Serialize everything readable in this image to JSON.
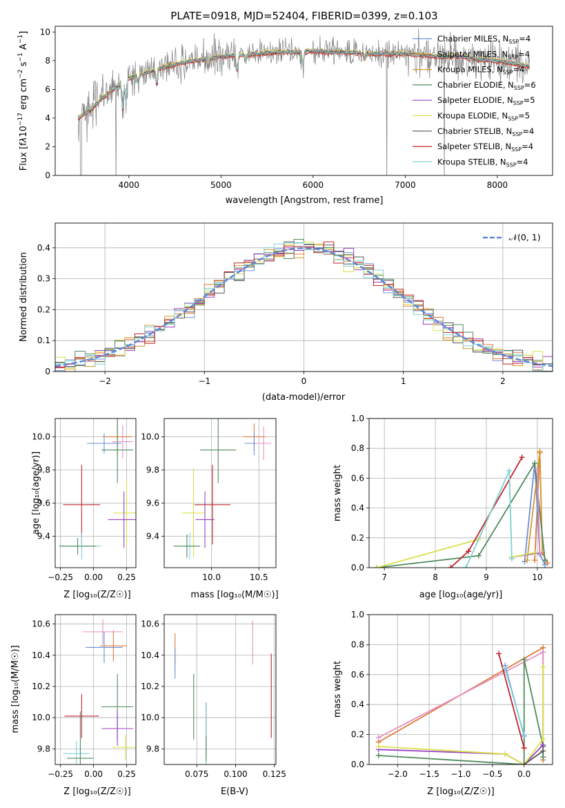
{
  "figure_title": "PLATE=0918, MJD=52404, FIBERID=0399, z=0.103",
  "chart_data": [
    {
      "id": "spectrum",
      "type": "line",
      "title": "PLATE=0918, MJD=52404, FIBERID=0399, z=0.103",
      "xlabel": "wavelength [Angstrom, rest frame]",
      "ylabel": "Flux [fλ10⁻¹⁷ erg cm⁻² s⁻¹ A⁻¹]",
      "xlim": [
        3200,
        8600
      ],
      "ylim": [
        0,
        10.4
      ],
      "xticks": [
        4000,
        5000,
        6000,
        7000,
        8000
      ],
      "yticks": [
        0,
        2,
        4,
        6,
        8,
        10
      ],
      "grid": false,
      "legend_position": "right",
      "continuum": {
        "x": [
          3450,
          3600,
          3700,
          3800,
          3900,
          4000,
          4200,
          4400,
          4600,
          4800,
          5000,
          5200,
          5400,
          5600,
          5800,
          6000,
          6200,
          6400,
          6600,
          6800,
          7000,
          7200,
          7400,
          7600,
          7800,
          8000,
          8200,
          8350
        ],
        "y": [
          4.0,
          4.7,
          5.3,
          5.9,
          6.3,
          6.8,
          7.2,
          7.6,
          7.9,
          8.1,
          8.3,
          8.4,
          8.5,
          8.6,
          8.6,
          8.7,
          8.6,
          8.6,
          8.5,
          8.5,
          8.5,
          8.4,
          8.3,
          8.3,
          8.1,
          8.0,
          7.8,
          7.6
        ]
      },
      "absorption_features": [
        {
          "x": 3934,
          "depth": 2.0
        },
        {
          "x": 3969,
          "depth": 1.6
        },
        {
          "x": 4101,
          "depth": 0.6
        },
        {
          "x": 4304,
          "depth": 1.1
        },
        {
          "x": 4861,
          "depth": 0.5
        },
        {
          "x": 5175,
          "depth": 1.2
        },
        {
          "x": 5270,
          "depth": 0.5
        },
        {
          "x": 5890,
          "depth": 0.9
        },
        {
          "x": 6563,
          "depth": 0.4
        }
      ],
      "series": [
        {
          "name": "Chabrier MILES, N_SSP=4",
          "color": "#6a8fd6",
          "offset": 0.05
        },
        {
          "name": "Salpeter MILES, N_SSP=4",
          "color": "#e07a3b",
          "offset": -0.08
        },
        {
          "name": "Kroupa MILES, N_SSP=4",
          "color": "#d49b2a",
          "offset": 0.02
        },
        {
          "name": "Chabrier ELODIE, N_SSP=6",
          "color": "#4e8a5a",
          "offset": -0.04
        },
        {
          "name": "Salpeter ELODIE, N_SSP=5",
          "color": "#9b3fc2",
          "offset": 0.06
        },
        {
          "name": "Kroupa ELODIE, N_SSP=5",
          "color": "#d9e04a",
          "offset": 0.1
        },
        {
          "name": "Chabrier STELIB, N_SSP=4",
          "color": "#555555",
          "offset": 0.0
        },
        {
          "name": "Salpeter STELIB, N_SSP=4",
          "color": "#c0222a",
          "offset": -0.12
        },
        {
          "name": "Kroupa STELIB, N_SSP=4",
          "color": "#7fd3dc",
          "offset": -0.02
        }
      ],
      "legend_labels": [
        {
          "prefix": "Chabrier MILES, N",
          "sub": "SSP",
          "suffix": "=4"
        },
        {
          "prefix": "Salpeter MILES, N",
          "sub": "SSP",
          "suffix": "=4"
        },
        {
          "prefix": "Kroupa MILES, N",
          "sub": "SSP",
          "suffix": "=4"
        },
        {
          "prefix": "Chabrier ELODIE, N",
          "sub": "SSP",
          "suffix": "=6"
        },
        {
          "prefix": "Salpeter ELODIE, N",
          "sub": "SSP",
          "suffix": "=5"
        },
        {
          "prefix": "Kroupa ELODIE, N",
          "sub": "SSP",
          "suffix": "=5"
        },
        {
          "prefix": "Chabrier STELIB, N",
          "sub": "SSP",
          "suffix": "=4"
        },
        {
          "prefix": "Salpeter STELIB, N",
          "sub": "SSP",
          "suffix": "=4"
        },
        {
          "prefix": "Kroupa STELIB, N",
          "sub": "SSP",
          "suffix": "=4"
        }
      ],
      "data_color": "#808080"
    },
    {
      "id": "residual_histogram",
      "type": "bar",
      "xlabel": "(data-model)/error",
      "ylabel": "Normed distribution",
      "xlim": [
        -2.5,
        2.5
      ],
      "ylim": [
        0,
        0.48
      ],
      "xticks": [
        -2,
        -1,
        0,
        1,
        2
      ],
      "yticks": [
        0.0,
        0.1,
        0.2,
        0.3,
        0.4
      ],
      "grid": true,
      "legend_position": "top-right",
      "legend_label": "𝒩(0, 1)",
      "reference_curve": {
        "name": "N(0,1)",
        "color": "#5b86d9",
        "style": "dashed"
      },
      "bin_width": 0.1,
      "bin_start": -2.6,
      "series_colors": [
        "#6a8fd6",
        "#e07a3b",
        "#d49b2a",
        "#4e8a5a",
        "#9b3fc2",
        "#d9e04a",
        "#555555",
        "#c0222a",
        "#7fd3dc"
      ]
    },
    {
      "id": "age_vs_z",
      "type": "scatter",
      "xlabel": "Z [log10(Z/Z☉)]",
      "ylabel": "age [log10(age/yr)]",
      "xlim": [
        -0.29,
        0.32
      ],
      "ylim": [
        9.21,
        10.11
      ],
      "xticks": [
        -0.25,
        0.0,
        0.25
      ],
      "xticklabels": [
        "−0.25",
        "0.00",
        "0.25"
      ],
      "yticks": [
        9.4,
        9.6,
        9.8,
        10.0
      ],
      "yticklabels": [
        "9.4",
        "9.6",
        "9.8",
        "10.0"
      ],
      "grid": true,
      "points": [
        {
          "x": 0.18,
          "xerr": 0.11,
          "y": 10.0,
          "yerr": 0.11,
          "color": "#e07a3b"
        },
        {
          "x": 0.08,
          "xerr": 0.13,
          "y": 9.96,
          "yerr": 0.06,
          "color": "#6a8fd6"
        },
        {
          "x": 0.18,
          "xerr": 0.12,
          "y": 9.92,
          "yerr": 0.2,
          "color": "#4e8a5a"
        },
        {
          "x": 0.22,
          "xerr": 0.08,
          "y": 9.97,
          "yerr": 0.1,
          "color": "#e68fc4"
        },
        {
          "x": 0.25,
          "xerr": 0.1,
          "y": 9.54,
          "yerr": 0.2,
          "color": "#d9e04a"
        },
        {
          "x": 0.23,
          "xerr": 0.12,
          "y": 9.5,
          "yerr": 0.17,
          "color": "#9b3fc2"
        },
        {
          "x": -0.09,
          "xerr": 0.14,
          "y": 9.59,
          "yerr": 0.24,
          "color": "#c0222a"
        },
        {
          "x": -0.09,
          "xerr": 0.15,
          "y": 9.34,
          "yerr": 0.08,
          "color": "#7fd3dc"
        },
        {
          "x": -0.12,
          "xerr": 0.14,
          "y": 9.34,
          "yerr": 0.05,
          "color": "#4e8a5a"
        }
      ]
    },
    {
      "id": "age_vs_mass",
      "type": "scatter",
      "xlabel": "mass [log10(M/M☉)]",
      "xlim": [
        9.5,
        10.68
      ],
      "ylim": [
        9.21,
        10.11
      ],
      "xticks": [
        10.0,
        10.5
      ],
      "xticklabels": [
        "10.0",
        "10.5"
      ],
      "yticks": [
        9.4,
        9.6,
        9.8,
        10.0
      ],
      "yticklabels": [
        "9.4",
        "9.6",
        "9.8",
        "10.0"
      ],
      "grid": true,
      "points": [
        {
          "x": 10.45,
          "xerr": 0.12,
          "y": 10.0,
          "yerr": 0.08,
          "color": "#e07a3b"
        },
        {
          "x": 10.45,
          "xerr": 0.1,
          "y": 9.96,
          "yerr": 0.07,
          "color": "#6a8fd6"
        },
        {
          "x": 10.07,
          "xerr": 0.19,
          "y": 9.92,
          "yerr": 0.2,
          "color": "#4e8a5a"
        },
        {
          "x": 10.55,
          "xerr": 0.08,
          "y": 9.96,
          "yerr": 0.1,
          "color": "#e68fc4"
        },
        {
          "x": 9.81,
          "xerr": 0.12,
          "y": 9.54,
          "yerr": 0.27,
          "color": "#d9e04a"
        },
        {
          "x": 9.93,
          "xerr": 0.1,
          "y": 9.5,
          "yerr": 0.17,
          "color": "#9b3fc2"
        },
        {
          "x": 10.01,
          "xerr": 0.19,
          "y": 9.59,
          "yerr": 0.24,
          "color": "#c0222a"
        },
        {
          "x": 9.77,
          "xerr": 0.08,
          "y": 9.34,
          "yerr": 0.08,
          "color": "#7fd3dc"
        },
        {
          "x": 9.74,
          "xerr": 0.14,
          "y": 9.34,
          "yerr": 0.07,
          "color": "#4e8a5a"
        }
      ]
    },
    {
      "id": "mass_weight_vs_age",
      "type": "line",
      "xlabel": "age [log10(age/yr)]",
      "ylabel": "mass weight",
      "xlim": [
        6.7,
        10.3
      ],
      "ylim": [
        0,
        1.0
      ],
      "xticks": [
        7,
        8,
        9,
        10
      ],
      "xticklabels": [
        "7",
        "8",
        "9",
        "10"
      ],
      "yticks": [
        0.0,
        0.2,
        0.4,
        0.6,
        0.8,
        1.0
      ],
      "yticklabels": [
        "0.0",
        "0.2",
        "0.4",
        "0.6",
        "0.8",
        "1.0"
      ],
      "grid": true,
      "series": [
        {
          "color": "#e07a3b",
          "x": [
            9.95,
            10.05,
            10.1,
            10.2
          ],
          "y": [
            0.05,
            0.77,
            0.1,
            0.03
          ]
        },
        {
          "color": "#6a8fd6",
          "x": [
            9.75,
            9.95,
            10.05,
            10.15
          ],
          "y": [
            0.04,
            0.7,
            0.09,
            0.02
          ]
        },
        {
          "color": "#d49b2a",
          "x": [
            9.8,
            10.05,
            10.1
          ],
          "y": [
            0.05,
            0.78,
            0.1
          ]
        },
        {
          "color": "#4e8a5a",
          "x": [
            6.85,
            8.85,
            9.95,
            10.15
          ],
          "y": [
            0.0,
            0.08,
            0.7,
            0.05
          ]
        },
        {
          "color": "#9b3fc2",
          "x": [
            9.5,
            10.05
          ],
          "y": [
            0.07,
            0.1
          ]
        },
        {
          "color": "#d9e04a",
          "x": [
            6.85,
            8.85,
            9.45,
            9.5,
            9.95
          ],
          "y": [
            0.0,
            0.19,
            0.65,
            0.07,
            0.1
          ]
        },
        {
          "color": "#c0222a",
          "x": [
            8.3,
            8.65,
            9.7
          ],
          "y": [
            0.0,
            0.11,
            0.74
          ]
        },
        {
          "color": "#7fd3dc",
          "x": [
            8.6,
            9.45,
            9.5
          ],
          "y": [
            0.0,
            0.65,
            0.06
          ]
        },
        {
          "color": "#e68fc4",
          "x": [
            10.0,
            10.05
          ],
          "y": [
            0.66,
            0.1
          ]
        }
      ]
    },
    {
      "id": "mass_vs_z",
      "type": "scatter",
      "xlabel": "Z [log10(Z/Z☉)]",
      "ylabel": "mass [log10(M/M☉)]",
      "xlim": [
        -0.29,
        0.32
      ],
      "ylim": [
        9.7,
        10.66
      ],
      "xticks": [
        -0.25,
        0.0,
        0.25
      ],
      "xticklabels": [
        "−0.25",
        "0.00",
        "0.25"
      ],
      "yticks": [
        9.8,
        10.0,
        10.2,
        10.4,
        10.6
      ],
      "yticklabels": [
        "9.8",
        "10.0",
        "10.2",
        "10.4",
        "10.6"
      ],
      "grid": true,
      "points": [
        {
          "x": 0.15,
          "xerr": 0.1,
          "y": 10.46,
          "yerr": 0.1,
          "color": "#e07a3b"
        },
        {
          "x": 0.08,
          "xerr": 0.14,
          "y": 10.45,
          "yerr": 0.1,
          "color": "#6a8fd6"
        },
        {
          "x": 0.18,
          "xerr": 0.12,
          "y": 10.07,
          "yerr": 0.21,
          "color": "#4e8a5a"
        },
        {
          "x": 0.07,
          "xerr": 0.15,
          "y": 10.55,
          "yerr": 0.08,
          "color": "#e68fc4"
        },
        {
          "x": 0.24,
          "xerr": 0.1,
          "y": 9.81,
          "yerr": 0.08,
          "color": "#d9e04a"
        },
        {
          "x": 0.18,
          "xerr": 0.12,
          "y": 9.93,
          "yerr": 0.11,
          "color": "#9b3fc2"
        },
        {
          "x": -0.09,
          "xerr": 0.13,
          "y": 10.01,
          "yerr": 0.14,
          "color": "#c0222a"
        },
        {
          "x": -0.13,
          "xerr": 0.1,
          "y": 9.77,
          "yerr": 0.08,
          "color": "#7fd3dc"
        },
        {
          "x": -0.1,
          "xerr": 0.1,
          "y": 9.74,
          "yerr": 0.3,
          "color": "#4e8a5a"
        }
      ]
    },
    {
      "id": "mass_vs_ebv",
      "type": "scatter",
      "xlabel": "E(B-V)",
      "xlim": [
        0.054,
        0.126
      ],
      "ylim": [
        9.7,
        10.66
      ],
      "xticks": [
        0.075,
        0.1,
        0.125
      ],
      "xticklabels": [
        "0.075",
        "0.100",
        "0.125"
      ],
      "yticks": [
        9.8,
        10.0,
        10.2,
        10.4,
        10.6
      ],
      "yticklabels": [
        "9.8",
        "10.0",
        "10.2",
        "10.4",
        "10.6"
      ],
      "grid": true,
      "points": [
        {
          "x": 0.061,
          "y": 10.44,
          "yerr": 0.1,
          "color": "#e07a3b"
        },
        {
          "x": 0.061,
          "y": 10.35,
          "yerr": 0.1,
          "color": "#6a8fd6"
        },
        {
          "x": 0.073,
          "y": 10.07,
          "yerr": 0.21,
          "color": "#4e8a5a"
        },
        {
          "x": 0.111,
          "y": 10.48,
          "yerr": 0.14,
          "color": "#e68fc4"
        },
        {
          "x": 0.081,
          "y": 9.88,
          "yerr": 0.2,
          "color": "#d9e04a"
        },
        {
          "x": 0.081,
          "y": 9.93,
          "yerr": 0.17,
          "color": "#9b3fc2"
        },
        {
          "x": 0.123,
          "y": 10.14,
          "yerr": 0.27,
          "color": "#c0222a"
        },
        {
          "x": 0.081,
          "y": 9.9,
          "yerr": 0.2,
          "color": "#7fd3dc"
        },
        {
          "x": 0.081,
          "y": 9.8,
          "yerr": 0.08,
          "color": "#4e8a5a"
        }
      ]
    },
    {
      "id": "mass_weight_vs_z",
      "type": "line",
      "xlabel": "Z [log10(Z/Z☉)]",
      "ylabel": "mass weight",
      "xlim": [
        -2.45,
        0.45
      ],
      "ylim": [
        0,
        1.0
      ],
      "xticks": [
        -2.0,
        -1.5,
        -1.0,
        -0.5,
        0.0
      ],
      "xticklabels": [
        "−2.0",
        "−1.5",
        "−1.0",
        "−0.5",
        "0.0"
      ],
      "yticks": [
        0.0,
        0.2,
        0.4,
        0.6,
        0.8,
        1.0
      ],
      "yticklabels": [
        "0.0",
        "0.2",
        "0.4",
        "0.6",
        "0.8",
        "1.0"
      ],
      "grid": true,
      "series": [
        {
          "color": "#e07a3b",
          "x": [
            -2.3,
            0.3,
            0.3
          ],
          "y": [
            0.15,
            0.78,
            0.03
          ]
        },
        {
          "color": "#e68fc4",
          "x": [
            -2.3,
            0.3,
            0.3
          ],
          "y": [
            0.18,
            0.75,
            0.05
          ]
        },
        {
          "color": "#4e8a5a",
          "x": [
            -2.3,
            0.0,
            0.0,
            0.3,
            0.3
          ],
          "y": [
            0.06,
            0.0,
            0.7,
            0.12,
            0.05
          ]
        },
        {
          "color": "#9b3fc2",
          "x": [
            -2.3,
            -0.3,
            0.0,
            0.3
          ],
          "y": [
            0.1,
            0.07,
            0.0,
            0.13
          ]
        },
        {
          "color": "#d9e04a",
          "x": [
            -2.3,
            -0.3,
            0.0,
            0.3,
            0.3
          ],
          "y": [
            0.12,
            0.07,
            0.0,
            0.17,
            0.65
          ]
        },
        {
          "color": "#c0222a",
          "x": [
            -0.4,
            0.0
          ],
          "y": [
            0.74,
            0.11
          ]
        },
        {
          "color": "#6a8fd6",
          "x": [
            -0.3,
            0.0
          ],
          "y": [
            0.66,
            0.19
          ]
        },
        {
          "color": "#7fd3dc",
          "x": [
            -0.3,
            0.0
          ],
          "y": [
            0.64,
            0.2
          ]
        },
        {
          "color": "#555555",
          "x": [
            0.0,
            0.3
          ],
          "y": [
            0.0,
            0.09
          ]
        }
      ]
    }
  ],
  "axis_labels": {
    "spectrum_x": "wavelength [Angstrom, rest frame]",
    "hist_x": "(data-model)/error",
    "hist_y": "Normed distribution",
    "age_vs_z_x": "Z [log₁₀(Z/Z☉)]",
    "age_vs_z_y": "age  [log₁₀(age/yr)]",
    "age_vs_mass_x": "mass [log₁₀(M/M☉)]",
    "mw_age_x": "age  [log₁₀(age/yr)]",
    "mw_age_y": "mass weight",
    "mass_vs_z_x": "Z [log₁₀(Z/Z☉)]",
    "mass_vs_z_y": "mass [log₁₀(M/M☉)]",
    "mass_vs_ebv_x": "E(B-V)",
    "mw_z_x": "Z [log₁₀(Z/Z☉)]",
    "mw_z_y": "mass weight"
  }
}
